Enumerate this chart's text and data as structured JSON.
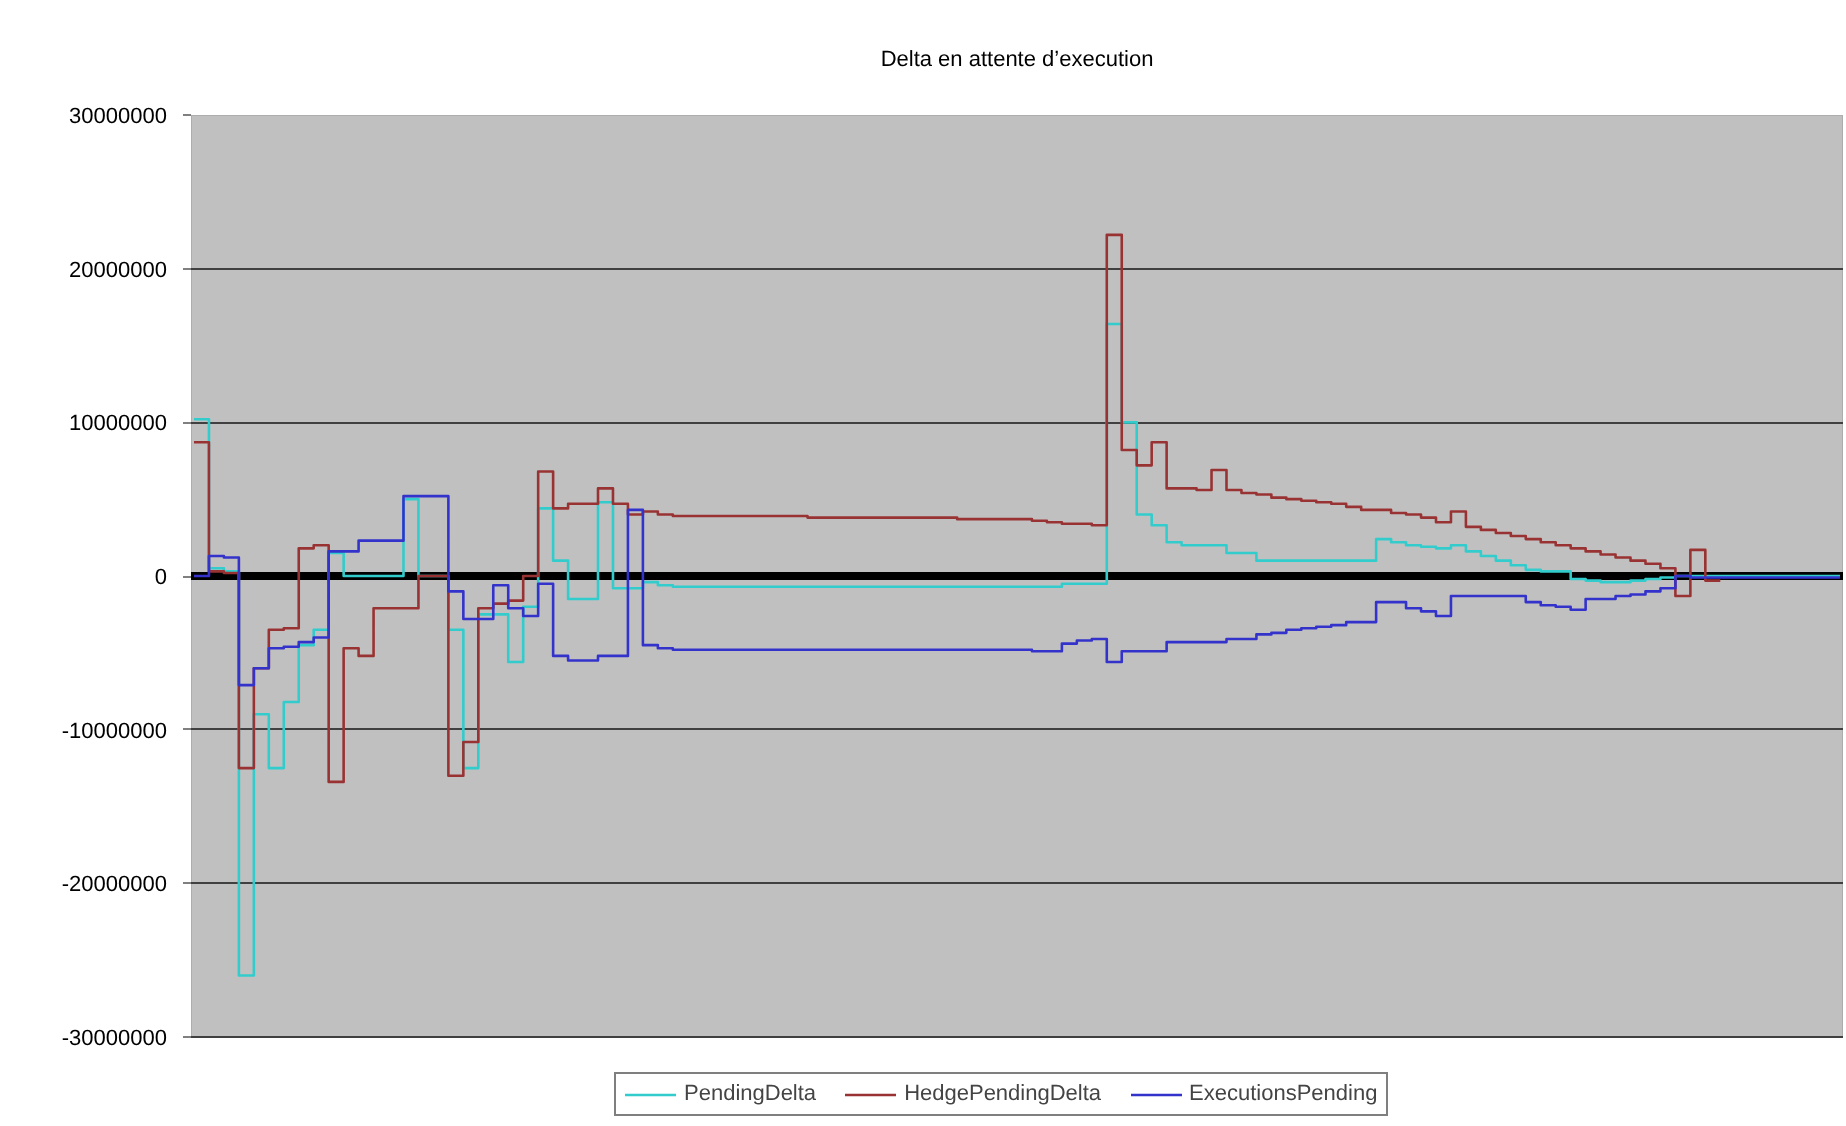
{
  "chart_data": {
    "type": "step",
    "title": "Delta en attente d’execution",
    "categories": [
      null,
      null,
      null,
      null,
      null,
      null,
      null,
      null,
      null,
      null,
      null,
      null,
      null,
      null,
      null,
      null,
      null,
      null,
      null,
      null,
      null,
      null,
      null,
      null,
      null,
      null,
      null,
      null,
      null,
      null,
      null,
      null,
      null,
      null,
      null,
      null,
      null,
      null,
      null,
      null,
      null,
      null,
      null,
      null,
      null,
      null,
      null,
      null,
      null,
      null,
      null,
      null,
      null,
      null,
      null,
      null,
      null,
      null,
      null,
      null,
      null,
      null,
      null,
      null,
      null,
      null,
      null,
      null,
      null,
      null,
      null,
      null,
      null,
      null,
      null,
      null,
      null,
      null,
      null,
      null,
      null,
      null,
      null,
      null,
      null,
      null,
      null,
      null,
      null,
      null,
      null,
      null,
      null,
      null,
      null,
      null,
      null,
      null,
      null,
      null,
      null,
      null,
      null,
      null,
      null,
      null,
      null,
      null,
      null,
      null,
      null
    ],
    "series": [
      {
        "name": "PendingDelta",
        "color": "#33cccc",
        "values": [
          10200000,
          500000,
          300000,
          -26000000,
          -9000000,
          -12500000,
          -8200000,
          -4500000,
          -3500000,
          1500000,
          0,
          0,
          0,
          0,
          5000000,
          0,
          0,
          -3500000,
          -12500000,
          -2500000,
          -2500000,
          -5600000,
          -2000000,
          4400000,
          1000000,
          -1500000,
          -1500000,
          4800000,
          -800000,
          -800000,
          -400000,
          -600000,
          -700000,
          -700000,
          -700000,
          -700000,
          -700000,
          -700000,
          -700000,
          -700000,
          -700000,
          -700000,
          -700000,
          -700000,
          -700000,
          -700000,
          -700000,
          -700000,
          -700000,
          -700000,
          -700000,
          -700000,
          -700000,
          -700000,
          -700000,
          -700000,
          -700000,
          -700000,
          -500000,
          -500000,
          -500000,
          16400000,
          10000000,
          4000000,
          3300000,
          2200000,
          2000000,
          2000000,
          2000000,
          1500000,
          1500000,
          1000000,
          1000000,
          1000000,
          1000000,
          1000000,
          1000000,
          1000000,
          1000000,
          2400000,
          2200000,
          2000000,
          1900000,
          1800000,
          2000000,
          1600000,
          1300000,
          1000000,
          700000,
          400000,
          300000,
          300000,
          -200000,
          -300000,
          -400000,
          -400000,
          -300000,
          -200000,
          -100000,
          0,
          0,
          0,
          0,
          0,
          0,
          0,
          0,
          0,
          0,
          0,
          0
        ]
      },
      {
        "name": "HedgePendingDelta",
        "color": "#993333",
        "values": [
          8700000,
          300000,
          200000,
          -12500000,
          -6000000,
          -3500000,
          -3400000,
          1800000,
          2000000,
          -13400000,
          -4700000,
          -5200000,
          -2100000,
          -2100000,
          -2100000,
          0,
          0,
          -13000000,
          -10800000,
          -2100000,
          -1800000,
          -1600000,
          0,
          6800000,
          4400000,
          4700000,
          4700000,
          5700000,
          4700000,
          4000000,
          4200000,
          4000000,
          3900000,
          3900000,
          3900000,
          3900000,
          3900000,
          3900000,
          3900000,
          3900000,
          3900000,
          3800000,
          3800000,
          3800000,
          3800000,
          3800000,
          3800000,
          3800000,
          3800000,
          3800000,
          3800000,
          3700000,
          3700000,
          3700000,
          3700000,
          3700000,
          3600000,
          3500000,
          3400000,
          3400000,
          3300000,
          22200000,
          8200000,
          7200000,
          8700000,
          5700000,
          5700000,
          5600000,
          6900000,
          5600000,
          5400000,
          5300000,
          5100000,
          5000000,
          4900000,
          4800000,
          4700000,
          4500000,
          4300000,
          4300000,
          4100000,
          4000000,
          3800000,
          3500000,
          4200000,
          3200000,
          3000000,
          2800000,
          2600000,
          2400000,
          2200000,
          2000000,
          1800000,
          1600000,
          1400000,
          1200000,
          1000000,
          800000,
          500000,
          -1300000,
          1700000,
          -300000,
          -300000,
          null,
          null,
          null,
          null,
          null,
          null,
          null,
          null
        ]
      },
      {
        "name": "ExecutionsPending",
        "color": "#3333cc",
        "values": [
          0,
          1300000,
          1200000,
          -7100000,
          -6000000,
          -4700000,
          -4600000,
          -4300000,
          -4000000,
          1600000,
          1600000,
          2300000,
          2300000,
          2300000,
          5200000,
          5200000,
          5200000,
          -1000000,
          -2800000,
          -2800000,
          -600000,
          -2100000,
          -2600000,
          -500000,
          -5200000,
          -5500000,
          -5500000,
          -5200000,
          -5200000,
          4300000,
          -4500000,
          -4700000,
          -4800000,
          -4800000,
          -4800000,
          -4800000,
          -4800000,
          -4800000,
          -4800000,
          -4800000,
          -4800000,
          -4800000,
          -4800000,
          -4800000,
          -4800000,
          -4800000,
          -4800000,
          -4800000,
          -4800000,
          -4800000,
          -4800000,
          -4800000,
          -4800000,
          -4800000,
          -4800000,
          -4800000,
          -4900000,
          -4900000,
          -4400000,
          -4200000,
          -4100000,
          -5600000,
          -4900000,
          -4900000,
          -4900000,
          -4300000,
          -4300000,
          -4300000,
          -4300000,
          -4100000,
          -4100000,
          -3800000,
          -3700000,
          -3500000,
          -3400000,
          -3300000,
          -3200000,
          -3000000,
          -3000000,
          -1700000,
          -1700000,
          -2100000,
          -2300000,
          -2600000,
          -1300000,
          -1300000,
          -1300000,
          -1300000,
          -1300000,
          -1700000,
          -1900000,
          -2000000,
          -2200000,
          -1500000,
          -1500000,
          -1300000,
          -1200000,
          -1000000,
          -800000,
          0,
          -100000,
          -100000,
          -100000,
          -100000,
          -100000,
          -100000,
          -100000,
          -100000,
          -100000,
          -100000,
          -100000
        ]
      }
    ],
    "ylim": [
      -30000000,
      30000000
    ],
    "yticks": [
      -30000000,
      -20000000,
      -10000000,
      0,
      10000000,
      20000000,
      30000000
    ],
    "ref_lines": [
      {
        "axis": "y",
        "value": 0,
        "color": "#000000"
      }
    ],
    "grid": "y",
    "legend": "bottom",
    "tick_labels": "y"
  }
}
